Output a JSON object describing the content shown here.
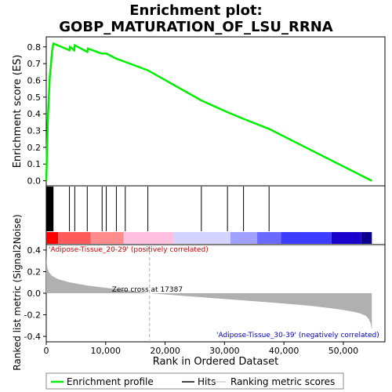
{
  "chart_data": {
    "type": "line",
    "title_line1": "Enrichment plot:",
    "title_line2": "GOBP_MATURATION_OF_LSU_RRNA",
    "es_panel": {
      "ylabel": "Enrichment score (ES)",
      "ylim": [
        -0.03,
        0.86
      ],
      "yticks": [
        "0.0",
        "0.1",
        "0.2",
        "0.3",
        "0.4",
        "0.5",
        "0.6",
        "0.7",
        "0.8"
      ],
      "series": {
        "name": "Enrichment profile",
        "color": "#00ee00",
        "x": [
          0,
          60,
          120,
          180,
          240,
          300,
          400,
          500,
          600,
          700,
          800,
          900,
          1000,
          1200,
          3900,
          4000,
          4700,
          4800,
          6900,
          7000,
          9300,
          9400,
          10100,
          11800,
          13300,
          17100,
          26100,
          30500,
          33200,
          37500,
          54800
        ],
        "y": [
          0.0,
          0.08,
          0.17,
          0.25,
          0.33,
          0.4,
          0.47,
          0.55,
          0.62,
          0.66,
          0.7,
          0.74,
          0.78,
          0.82,
          0.78,
          0.8,
          0.78,
          0.81,
          0.77,
          0.79,
          0.76,
          0.76,
          0.76,
          0.73,
          0.71,
          0.66,
          0.48,
          0.41,
          0.37,
          0.31,
          0.0
        ]
      }
    },
    "hits": [
      20,
      60,
      110,
      160,
      210,
      270,
      330,
      400,
      470,
      540,
      620,
      700,
      790,
      880,
      960,
      1050,
      1150,
      3900,
      4800,
      6900,
      9400,
      10100,
      11800,
      13300,
      17100,
      26100,
      30500,
      33200,
      37500
    ],
    "colorbar": {
      "segments": [
        {
          "from": 0,
          "to": 2000,
          "color": "#ff0000"
        },
        {
          "from": 2000,
          "to": 7500,
          "color": "#ff5a5a"
        },
        {
          "from": 7500,
          "to": 13000,
          "color": "#ff8c8c"
        },
        {
          "from": 13000,
          "to": 21500,
          "color": "#ffc0e0"
        },
        {
          "from": 21500,
          "to": 31000,
          "color": "#d4d4ff"
        },
        {
          "from": 31000,
          "to": 35500,
          "color": "#a0a0ff"
        },
        {
          "from": 35500,
          "to": 39500,
          "color": "#6a6aff"
        },
        {
          "from": 39500,
          "to": 48000,
          "color": "#3c3cff"
        },
        {
          "from": 48000,
          "to": 53000,
          "color": "#1a00cc"
        },
        {
          "from": 53000,
          "to": 54800,
          "color": "#0a0090"
        }
      ]
    },
    "metric_panel": {
      "ylabel": "Ranked list metric (Signal2Noise)",
      "ylim": [
        -0.45,
        0.45
      ],
      "yticks": [
        "-0.4",
        "-0.2",
        "0.0",
        "0.2",
        "0.4"
      ],
      "zero_cross_label": "Zero cross at 17387",
      "zero_cross": 17387,
      "pos_label": "'Adipose-Tissue_20-29' (positively correlated)",
      "neg_label": "'Adipose-Tissue_30-39' (negatively correlated)",
      "x": [
        0,
        50,
        200,
        500,
        1000,
        2000,
        4000,
        7000,
        10000,
        14000,
        17387,
        22000,
        28000,
        34000,
        40000,
        45000,
        48000,
        50000,
        52000,
        53000,
        53800,
        54300,
        54600,
        54800
      ],
      "y": [
        0.4,
        0.3,
        0.23,
        0.19,
        0.16,
        0.13,
        0.1,
        0.07,
        0.05,
        0.025,
        0.0,
        -0.02,
        -0.045,
        -0.07,
        -0.095,
        -0.12,
        -0.14,
        -0.155,
        -0.175,
        -0.19,
        -0.21,
        -0.24,
        -0.28,
        -0.34
      ]
    },
    "xaxis": {
      "label": "Rank in Ordered Dataset",
      "xlim": [
        0,
        57000
      ],
      "ticks": [
        0,
        10000,
        20000,
        30000,
        40000,
        50000
      ],
      "tick_labels": [
        "0",
        "10,000",
        "20,000",
        "30,000",
        "40,000",
        "50,000"
      ]
    },
    "legend": {
      "placement": "bottom",
      "items": [
        "Enrichment profile",
        "Hits",
        "Ranking metric scores"
      ]
    }
  }
}
